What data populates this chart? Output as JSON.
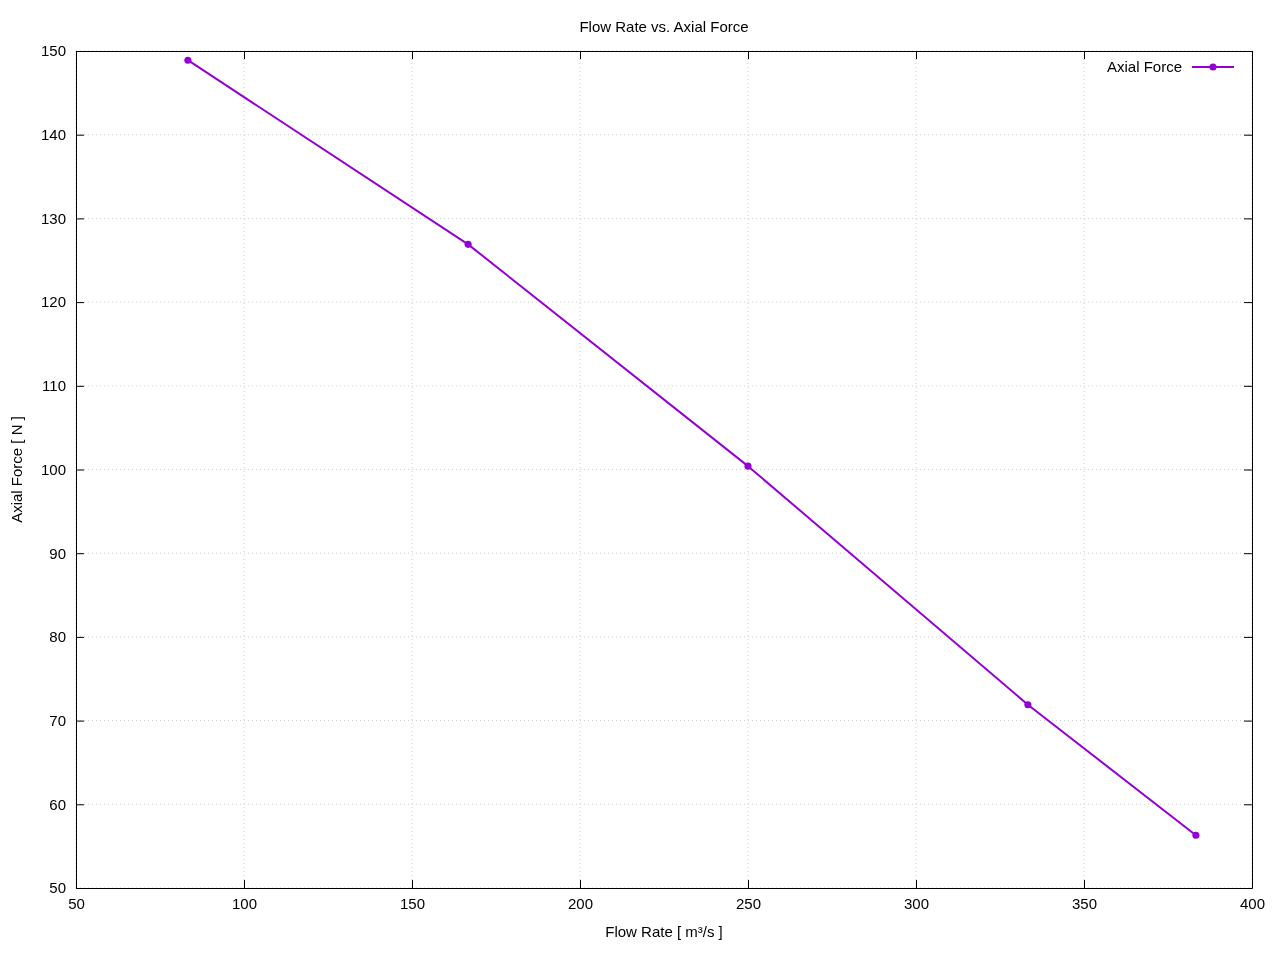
{
  "chart_data": {
    "type": "line",
    "title": "Flow Rate vs. Axial Force",
    "xlabel": "Flow Rate [ m³/s ]",
    "ylabel": "Axial Force [ N ]",
    "x": [
      83.3,
      166.7,
      250,
      333.3,
      383.3
    ],
    "series": [
      {
        "name": "Axial Force",
        "color": "#9400d3",
        "values": [
          148.9,
          126.9,
          100.4,
          71.9,
          56.3
        ]
      }
    ],
    "xlim": [
      50,
      400
    ],
    "xticks": [
      50,
      100,
      150,
      200,
      250,
      300,
      350,
      400
    ],
    "ylim": [
      50,
      150
    ],
    "yticks": [
      50,
      60,
      70,
      80,
      90,
      100,
      110,
      120,
      130,
      140,
      150
    ],
    "grid": true,
    "legend": "top right",
    "marker": "circle",
    "line_style": "solid"
  }
}
